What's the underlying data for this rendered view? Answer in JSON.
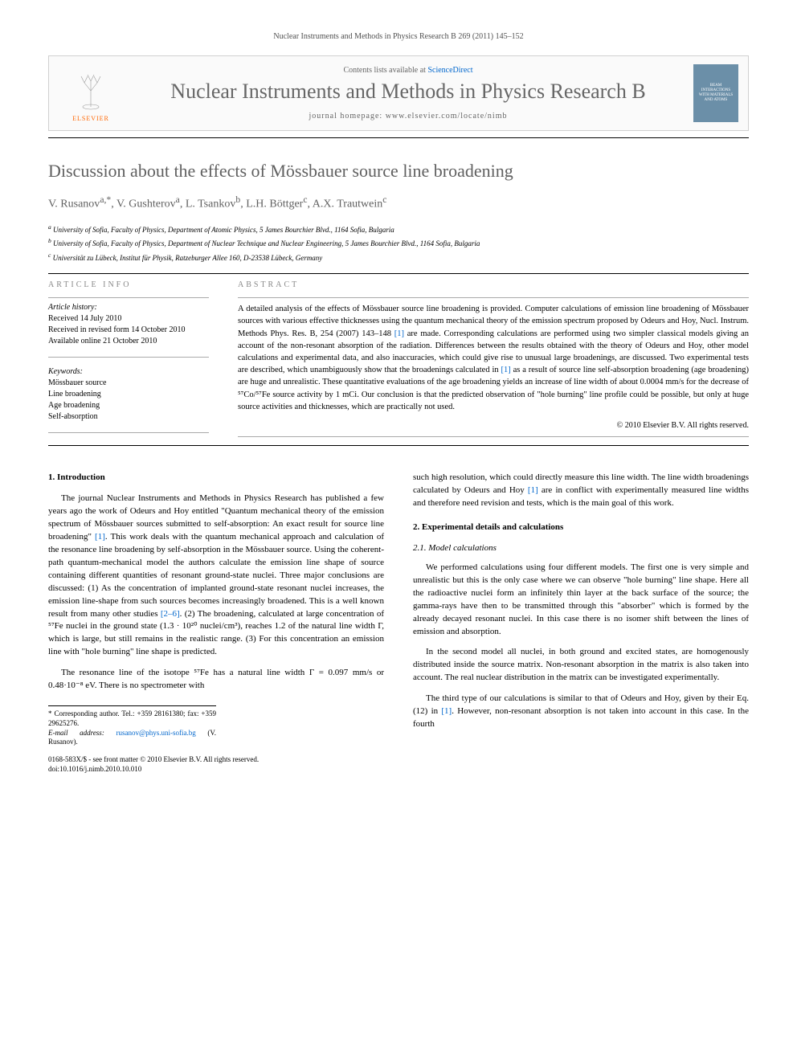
{
  "journal_ref": "Nuclear Instruments and Methods in Physics Research B 269 (2011) 145–152",
  "header": {
    "contents_prefix": "Contents lists available at ",
    "sciencedirect": "ScienceDirect",
    "journal_name": "Nuclear Instruments and Methods in Physics Research B",
    "homepage_label": "journal homepage: www.elsevier.com/locate/nimb",
    "publisher": "ELSEVIER",
    "cover_text": "BEAM INTERACTIONS WITH MATERIALS AND ATOMS"
  },
  "title": "Discussion about the effects of Mössbauer source line broadening",
  "authors_html": "V. Rusanov<sup>a,*</sup>, V. Gushterov<sup>a</sup>, L. Tsankov<sup>b</sup>, L.H. Böttger<sup>c</sup>, A.X. Trautwein<sup>c</sup>",
  "affiliations": [
    {
      "sup": "a",
      "text": "University of Sofia, Faculty of Physics, Department of Atomic Physics, 5 James Bourchier Blvd., 1164 Sofia, Bulgaria"
    },
    {
      "sup": "b",
      "text": "University of Sofia, Faculty of Physics, Department of Nuclear Technique and Nuclear Engineering, 5 James Bourchier Blvd., 1164 Sofia, Bulgaria"
    },
    {
      "sup": "c",
      "text": "Universität zu Lübeck, Institut für Physik, Ratzeburger Allee 160, D-23538 Lübeck, Germany"
    }
  ],
  "info_label": "ARTICLE INFO",
  "abstract_label": "ABSTRACT",
  "history": {
    "label": "Article history:",
    "items": [
      "Received 14 July 2010",
      "Received in revised form 14 October 2010",
      "Available online 21 October 2010"
    ]
  },
  "keywords": {
    "label": "Keywords:",
    "items": [
      "Mössbauer source",
      "Line broadening",
      "Age broadening",
      "Self-absorption"
    ]
  },
  "abstract_text": "A detailed analysis of the effects of Mössbauer source line broadening is provided. Computer calculations of emission line broadening of Mössbauer sources with various effective thicknesses using the quantum mechanical theory of the emission spectrum proposed by Odeurs and Hoy, Nucl. Instrum. Methods Phys. Res. B, 254 (2007) 143–148 [1] are made. Corresponding calculations are performed using two simpler classical models giving an account of the non-resonant absorption of the radiation. Differences between the results obtained with the theory of Odeurs and Hoy, other model calculations and experimental data, and also inaccuracies, which could give rise to unusual large broadenings, are discussed. Two experimental tests are described, which unambiguously show that the broadenings calculated in [1] as a result of source line self-absorption broadening (age broadening) are huge and unrealistic. These quantitative evaluations of the age broadening yields an increase of line width of about 0.0004 mm/s for the decrease of ⁵⁷Co/⁵⁷Fe source activity by 1 mCi. Our conclusion is that the predicted observation of \"hole burning\" line profile could be possible, but only at huge source activities and thicknesses, which are practically not used.",
  "copyright": "© 2010 Elsevier B.V. All rights reserved.",
  "sections": {
    "intro_heading": "1. Introduction",
    "intro_p1": "The journal Nuclear Instruments and Methods in Physics Research has published a few years ago the work of Odeurs and Hoy entitled \"Quantum mechanical theory of the emission spectrum of Mössbauer sources submitted to self-absorption: An exact result for source line broadening\" [1]. This work deals with the quantum mechanical approach and calculation of the resonance line broadening by self-absorption in the Mössbauer source. Using the coherent-path quantum-mechanical model the authors calculate the emission line shape of source containing different quantities of resonant ground-state nuclei. Three major conclusions are discussed: (1) As the concentration of implanted ground-state resonant nuclei increases, the emission line-shape from such sources becomes increasingly broadened. This is a well known result from many other studies [2–6]. (2) The broadening, calculated at large concentration of ⁵⁷Fe nuclei in the ground state (1.3 · 10²⁰ nuclei/cm³), reaches 1.2 of the natural line width Γ, which is large, but still remains in the realistic range. (3) For this concentration an emission line with \"hole burning\" line shape is predicted.",
    "intro_p2": "The resonance line of the isotope ⁵⁷Fe has a natural line width Γ = 0.097 mm/s or 0.48·10⁻⁸ eV. There is no spectrometer with",
    "col2_p1": "such high resolution, which could directly measure this line width. The line width broadenings calculated by Odeurs and Hoy [1] are in conflict with experimentally measured line widths and therefore need revision and tests, which is the main goal of this work.",
    "exp_heading": "2. Experimental details and calculations",
    "model_heading": "2.1. Model calculations",
    "exp_p1": "We performed calculations using four different models. The first one is very simple and unrealistic but this is the only case where we can observe \"hole burning\" line shape. Here all the radioactive nuclei form an infinitely thin layer at the back surface of the source; the gamma-rays have then to be transmitted through this \"absorber\" which is formed by the already decayed resonant nuclei. In this case there is no isomer shift between the lines of emission and absorption.",
    "exp_p2": "In the second model all nuclei, in both ground and excited states, are homogenously distributed inside the source matrix. Non-resonant absorption in the matrix is also taken into account. The real nuclear distribution in the matrix can be investigated experimentally.",
    "exp_p3": "The third type of our calculations is similar to that of Odeurs and Hoy, given by their Eq. (12) in [1]. However, non-resonant absorption is not taken into account in this case. In the fourth"
  },
  "footnote": {
    "corresponding": "* Corresponding author. Tel.: +359 28161380; fax: +359 29625276.",
    "email_label": "E-mail address: ",
    "email": "rusanov@phys.uni-sofia.bg",
    "email_suffix": " (V. Rusanov)."
  },
  "doi": {
    "line1": "0168-583X/$ - see front matter © 2010 Elsevier B.V. All rights reserved.",
    "line2": "doi:10.1016/j.nimb.2010.10.010"
  },
  "colors": {
    "link": "#0066cc",
    "title_gray": "#606060",
    "orange": "#ff6600"
  }
}
